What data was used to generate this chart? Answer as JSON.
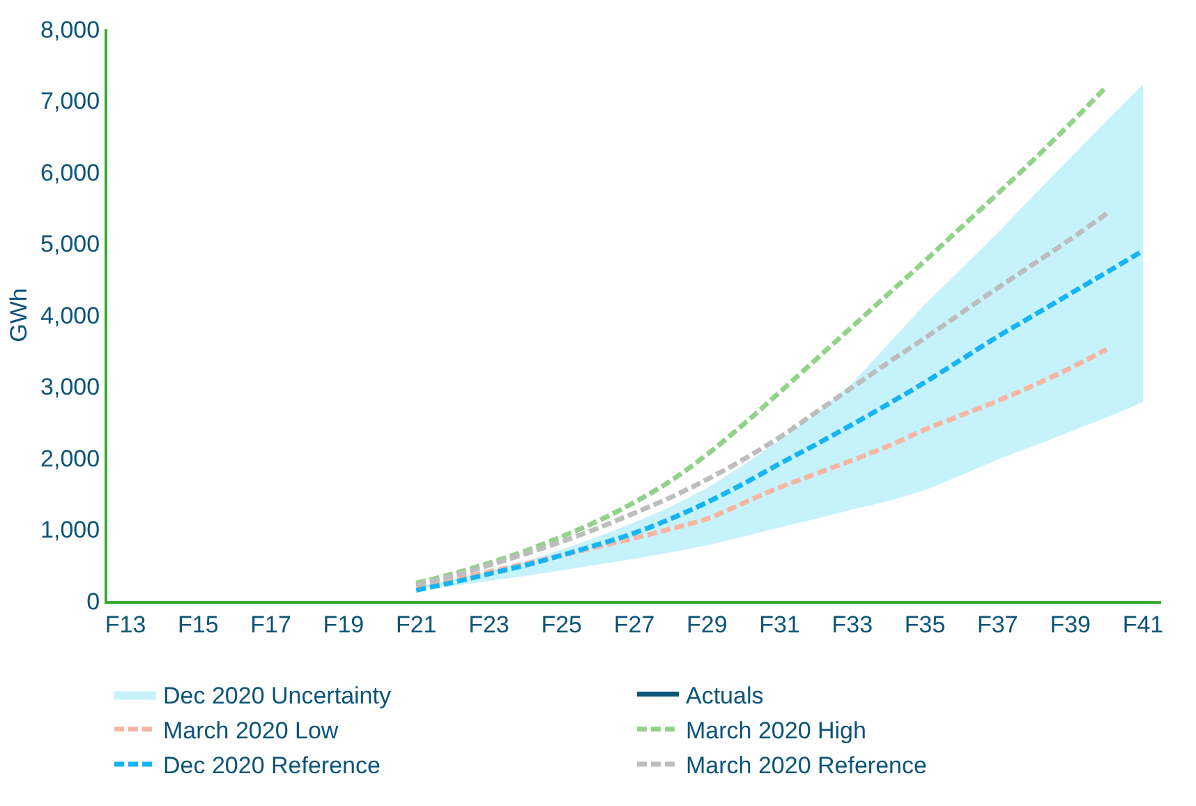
{
  "chart_data": {
    "type": "line",
    "ylabel": "GWh",
    "categories": [
      "F13",
      null,
      "F15",
      null,
      "F17",
      null,
      "F19",
      null,
      "F21",
      null,
      "F23",
      null,
      "F25",
      null,
      "F27",
      null,
      "F29",
      null,
      "F31",
      null,
      "F33",
      null,
      "F35",
      null,
      "F37",
      null,
      "F39",
      null,
      "F41"
    ],
    "ylim": [
      0,
      8000
    ],
    "yticks": [
      0,
      {
        "value": 1000,
        "label": "1,000"
      },
      {
        "value": 2000,
        "label": "2,000"
      },
      {
        "value": 3000,
        "label": "3,000"
      },
      {
        "value": 4000,
        "label": "4,000"
      },
      {
        "value": 5000,
        "label": "5,000"
      },
      {
        "value": 6000,
        "label": "6,000"
      },
      {
        "value": 7000,
        "label": "7,000"
      },
      {
        "value": 8000,
        "label": "8,000"
      }
    ],
    "legend": "bottom",
    "line_style": "dashed",
    "marker": "none",
    "series": [
      {
        "name": "Dec 2020 Uncertainty",
        "type": "area",
        "color": "#c6f2fc",
        "lower": [
          null,
          null,
          null,
          null,
          null,
          null,
          null,
          null,
          150,
          210,
          280,
          350,
          430,
          510,
          590,
          680,
          780,
          900,
          1030,
          1150,
          1280,
          1400,
          1550,
          1760,
          1980,
          2170,
          2370,
          2570,
          2780
        ],
        "upper": [
          null,
          null,
          null,
          null,
          null,
          null,
          null,
          null,
          200,
          300,
          420,
          560,
          720,
          900,
          1100,
          1320,
          1580,
          1900,
          2250,
          2620,
          3050,
          3600,
          4150,
          4650,
          5150,
          5680,
          6200,
          6720,
          7230
        ],
        "values": [
          null,
          null,
          null,
          null,
          null,
          null,
          null,
          null,
          null,
          null,
          null,
          null,
          null,
          null,
          null,
          null,
          null,
          null,
          null,
          null,
          null,
          null,
          null,
          null,
          null,
          null,
          null,
          null,
          null
        ]
      },
      {
        "name": "Actuals",
        "color": "#0b5479",
        "line_style": "solid",
        "values": [
          null,
          null,
          null,
          null,
          null,
          null,
          null,
          null,
          null,
          null,
          null,
          null,
          null,
          null,
          null,
          null,
          null,
          null,
          null,
          null,
          null,
          null,
          null,
          null,
          null,
          null,
          null,
          null,
          null
        ]
      },
      {
        "name": "March 2020 Low",
        "color": "#f8b6a2",
        "values": [
          null,
          null,
          null,
          null,
          null,
          null,
          null,
          null,
          200,
          300,
          410,
          520,
          640,
          760,
          880,
          1010,
          1150,
          1370,
          1590,
          1780,
          1970,
          2170,
          2400,
          2600,
          2800,
          3020,
          3260,
          3520,
          null
        ]
      },
      {
        "name": "March 2020 High",
        "color": "#92d28a",
        "values": [
          null,
          null,
          null,
          null,
          null,
          null,
          null,
          null,
          250,
          380,
          530,
          700,
          900,
          1120,
          1380,
          1680,
          2050,
          2470,
          2920,
          3380,
          3840,
          4300,
          4760,
          5230,
          5700,
          6180,
          6680,
          7200,
          null
        ]
      },
      {
        "name": "Dec 2020 Reference",
        "color": "#16b4f4",
        "values": [
          null,
          null,
          null,
          null,
          null,
          null,
          null,
          null,
          150,
          260,
          380,
          500,
          640,
          790,
          950,
          1150,
          1380,
          1640,
          1920,
          2190,
          2470,
          2760,
          3060,
          3380,
          3700,
          4000,
          4300,
          4600,
          4900
        ]
      },
      {
        "name": "March 2020 Reference",
        "color": "#bdbdbd",
        "values": [
          null,
          null,
          null,
          null,
          null,
          null,
          null,
          null,
          220,
          350,
          500,
          660,
          830,
          1020,
          1230,
          1450,
          1700,
          1980,
          2290,
          2640,
          2990,
          3340,
          3680,
          4030,
          4380,
          4720,
          5060,
          5420,
          null
        ]
      }
    ]
  }
}
